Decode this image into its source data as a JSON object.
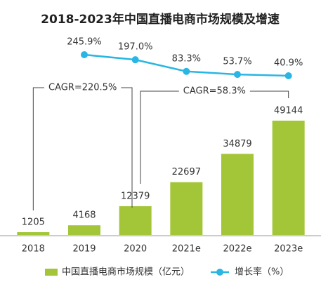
{
  "chart_data": {
    "type": "bar",
    "title": "2018-2023年中国直播电商市场规模及增速",
    "categories": [
      "2018",
      "2019",
      "2020",
      "2021e",
      "2022e",
      "2023e"
    ],
    "series": [
      {
        "name": "中国直播电商市场规模（亿元）",
        "type": "bar",
        "color": "#a3c639",
        "values": [
          1205,
          4168,
          12379,
          22697,
          34879,
          49144
        ]
      },
      {
        "name": "增长率（%）",
        "type": "line",
        "axis": "y2",
        "color": "#29b6e3",
        "values": [
          null,
          245.9,
          197.0,
          83.3,
          53.7,
          40.9
        ],
        "value_labels": [
          null,
          "245.9%",
          "197.0%",
          "83.3%",
          "53.7%",
          "40.9%"
        ]
      }
    ],
    "annotations": [
      "CAGR=220.5%",
      "CAGR=58.3%"
    ]
  }
}
